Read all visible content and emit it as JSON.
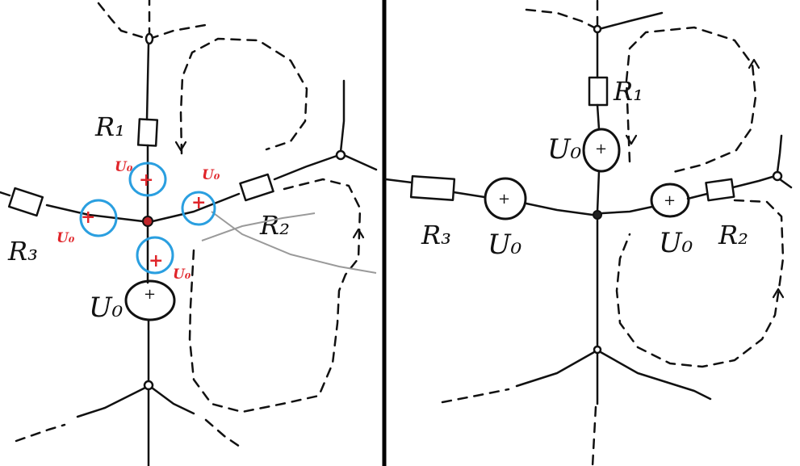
{
  "colors": {
    "ink": "#111111",
    "red": "#e0262b",
    "blue": "#2a9fe0",
    "gray": "#9a9a9a",
    "background": "#ffffff"
  },
  "left_panel": {
    "labels": {
      "r1": "R₁",
      "r2": "R₂",
      "r3": "R₃",
      "source": "U₀",
      "red_u_top": "U₀",
      "red_u_right": "U₀",
      "red_u_left": "U₀",
      "red_u_bottom": "U₀",
      "plus": "+"
    }
  },
  "right_panel": {
    "labels": {
      "r1": "R₁",
      "r2": "R₂",
      "r3": "R₃",
      "u_top": "U₀",
      "u_left": "U₀",
      "u_right": "U₀",
      "plus": "+"
    }
  }
}
